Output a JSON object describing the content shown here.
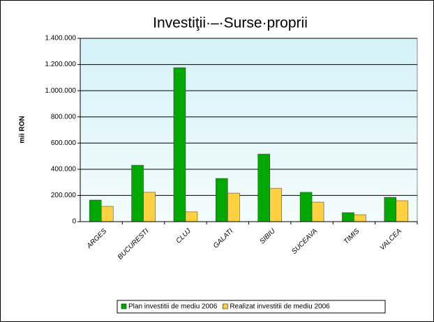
{
  "chart_data": {
    "type": "bar",
    "title": "Investiţii·–·Surse·proprii",
    "y_label": "mii RON",
    "categories": [
      "ARGES",
      "BUCURESTI",
      "CLUJ",
      "GALATI",
      "SIBIU",
      "SUCEAVA",
      "TIMIS",
      "VALCEA"
    ],
    "series": [
      {
        "name": "Plan investitii de mediu 2006",
        "color": "#00a800",
        "values": [
          165000,
          431000,
          1176000,
          330000,
          516000,
          224000,
          69000,
          186000
        ]
      },
      {
        "name": "Realizat investitii de mediu 2006",
        "color": "#ffd040",
        "values": [
          117000,
          224000,
          75000,
          218000,
          255000,
          149000,
          53000,
          160000
        ]
      }
    ],
    "ylim": [
      0,
      1400000
    ],
    "yticks": [
      0,
      {
        "value": 200000,
        "label": "200.000"
      },
      {
        "value": 400000,
        "label": "400.000"
      },
      {
        "value": 600000,
        "label": "600.000"
      },
      {
        "value": 800000,
        "label": "800.000"
      },
      {
        "value": 1000000,
        "label": "1.000.000"
      },
      {
        "value": 1200000,
        "label": "1.200.000"
      },
      {
        "value": 1400000,
        "label": "1.400.000"
      }
    ],
    "grid": true,
    "legend": "bottom"
  }
}
